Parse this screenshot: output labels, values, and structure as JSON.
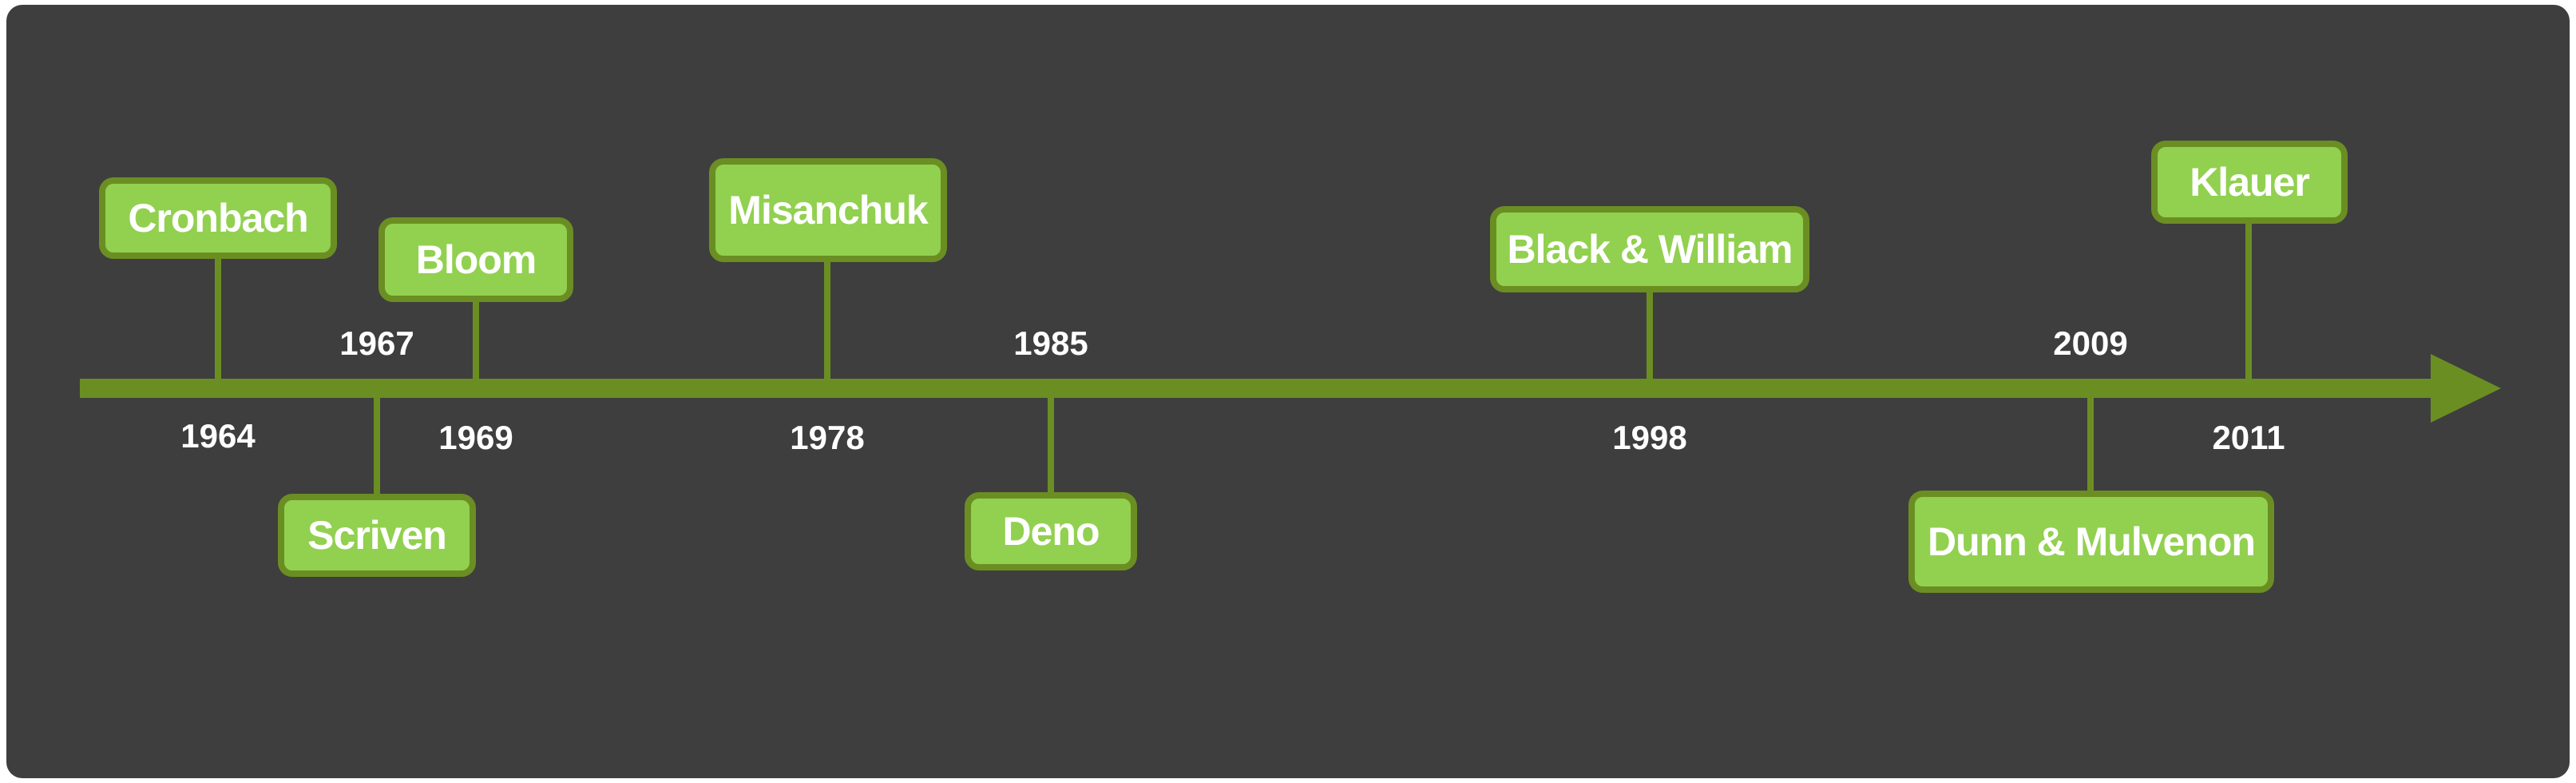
{
  "colors": {
    "background": "#3e3e3e",
    "axis": "#6b8e23",
    "box_fill": "#92d050",
    "box_border": "#6b8e23",
    "text": "#ffffff"
  },
  "events": [
    {
      "name": "Cronbach",
      "year": "1964"
    },
    {
      "name": "Scriven",
      "year": "1967"
    },
    {
      "name": "Bloom",
      "year": "1969"
    },
    {
      "name": "Misanchuk",
      "year": "1978"
    },
    {
      "name": "Deno",
      "year": "1985"
    },
    {
      "name": "Black & William",
      "year": "1998"
    },
    {
      "name": "Dunn & Mulvenon",
      "year": "2009"
    },
    {
      "name": "Klauer",
      "year": "2011"
    }
  ]
}
